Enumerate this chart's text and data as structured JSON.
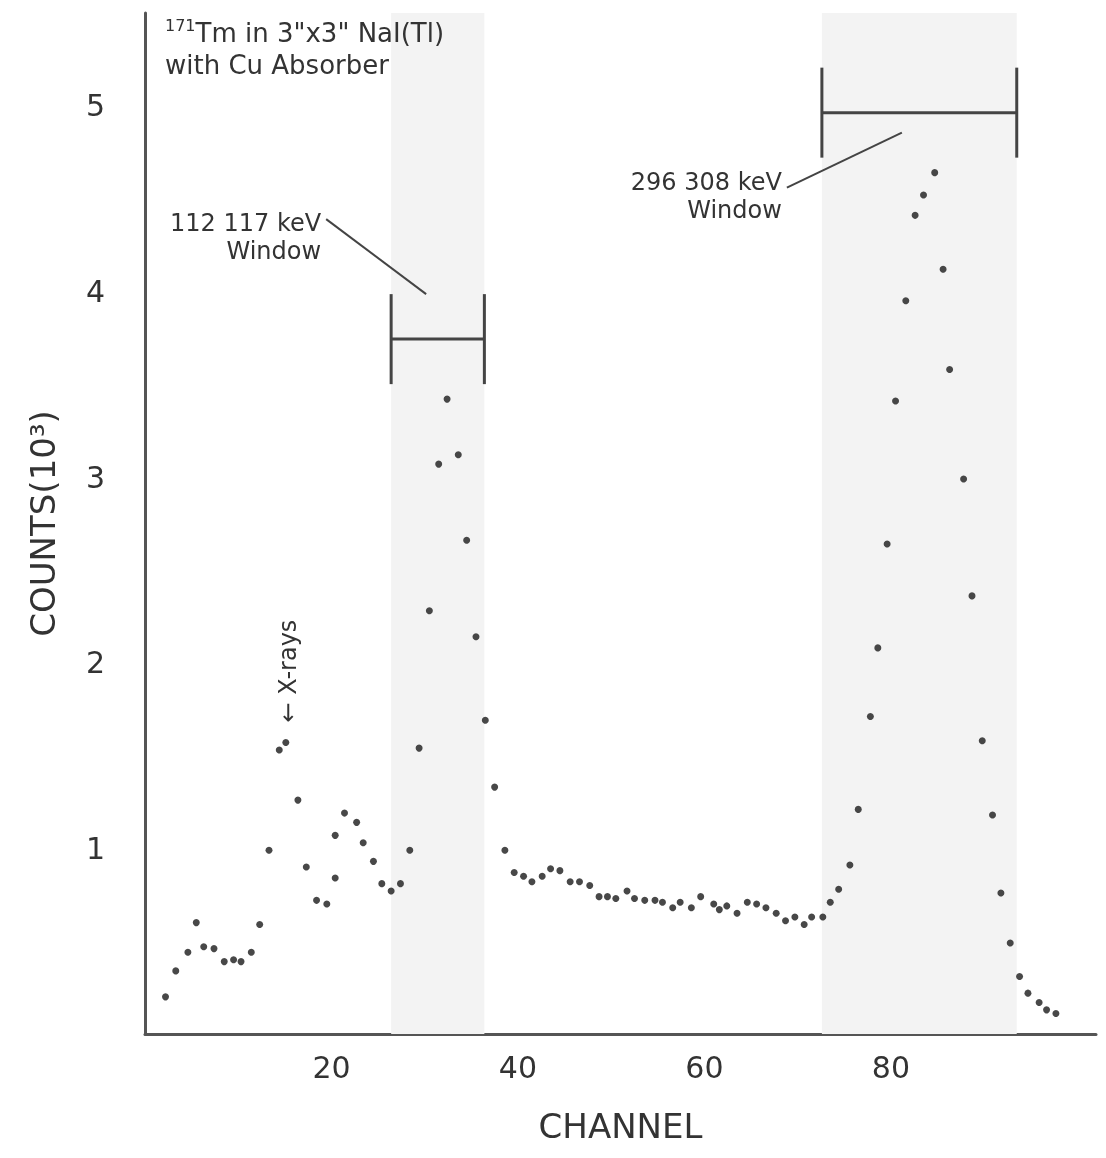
{
  "chart_data": {
    "type": "scatter",
    "title": "$^{171}$Tm in 3\"x3\" NaI(Tl)\nwith Cu Absorber",
    "xlabel": "CHANNEL",
    "ylabel": "COUNTS(10³)",
    "x": [
      2.2,
      3.3,
      4.6,
      5.5,
      6.3,
      7.4,
      8.5,
      9.5,
      10.3,
      11.4,
      12.3,
      13.3,
      14.4,
      15.1,
      16.4,
      17.3,
      18.4,
      19.5,
      20.4,
      20.4,
      21.4,
      22.7,
      23.4,
      24.5,
      25.4,
      26.4,
      27.4,
      28.4,
      29.4,
      30.5,
      31.5,
      32.4,
      33.6,
      34.5,
      35.5,
      36.5,
      37.5,
      38.6,
      39.6,
      40.6,
      41.5,
      42.6,
      43.5,
      44.5,
      45.6,
      46.6,
      47.7,
      48.7,
      49.6,
      50.5,
      51.7,
      52.5,
      53.6,
      54.7,
      55.5,
      56.6,
      57.4,
      58.6,
      59.6,
      61.0,
      61.6,
      62.4,
      63.5,
      64.6,
      65.6,
      66.6,
      67.7,
      68.7,
      69.7,
      70.7,
      71.5,
      72.7,
      73.5,
      74.4,
      75.6,
      76.5,
      77.8,
      78.6,
      79.6,
      80.5,
      81.6,
      82.6,
      83.5,
      84.7,
      85.6,
      86.3,
      87.8,
      88.7,
      89.8,
      90.9,
      91.8,
      92.8,
      93.8,
      94.7,
      95.9,
      96.7,
      97.7
    ],
    "series": [
      {
        "color": "#1a1a1a",
        "values": [
          0.2,
          0.34,
          0.44,
          0.6,
          0.47,
          0.46,
          0.39,
          0.4,
          0.39,
          0.44,
          0.59,
          0.99,
          1.53,
          1.57,
          1.26,
          0.9,
          0.72,
          0.7,
          1.07,
          0.84,
          1.19,
          1.14,
          1.03,
          0.93,
          0.81,
          0.77,
          0.81,
          0.99,
          1.54,
          2.28,
          3.07,
          3.42,
          3.12,
          2.66,
          2.14,
          1.69,
          1.33,
          0.99,
          0.87,
          0.85,
          0.82,
          0.85,
          0.89,
          0.88,
          0.82,
          0.82,
          0.8,
          0.74,
          0.74,
          0.73,
          0.77,
          0.73,
          0.72,
          0.72,
          0.71,
          0.68,
          0.71,
          0.68,
          0.74,
          0.7,
          0.67,
          0.69,
          0.65,
          0.71,
          0.7,
          0.68,
          0.65,
          0.61,
          0.63,
          0.59,
          0.63,
          0.63,
          0.71,
          0.78,
          0.91,
          1.21,
          1.71,
          2.08,
          2.64,
          3.41,
          3.95,
          4.41,
          4.52,
          4.64,
          4.12,
          3.58,
          2.99,
          2.36,
          1.58,
          1.18,
          0.76,
          0.49,
          0.31,
          0.22,
          0.17,
          0.13,
          0.11
        ]
      }
    ],
    "xlim": [
      0,
      102
    ],
    "xticks": [
      20,
      40,
      60,
      80
    ],
    "ylim": [
      0,
      5.5
    ],
    "yticks": [
      1,
      2,
      3,
      4,
      5
    ],
    "grid": false,
    "marker": "circle",
    "bands": [
      {
        "axis": "x",
        "from": 26.4,
        "to": 36.4,
        "label": "112 117 keV\nWindow"
      },
      {
        "axis": "x",
        "from": 72.6,
        "to": 93.5,
        "label": "296 308 keV\nWindow"
      }
    ],
    "annotations": [
      {
        "text": "← X-rays",
        "x": 15.1,
        "y": 1.57
      }
    ]
  }
}
